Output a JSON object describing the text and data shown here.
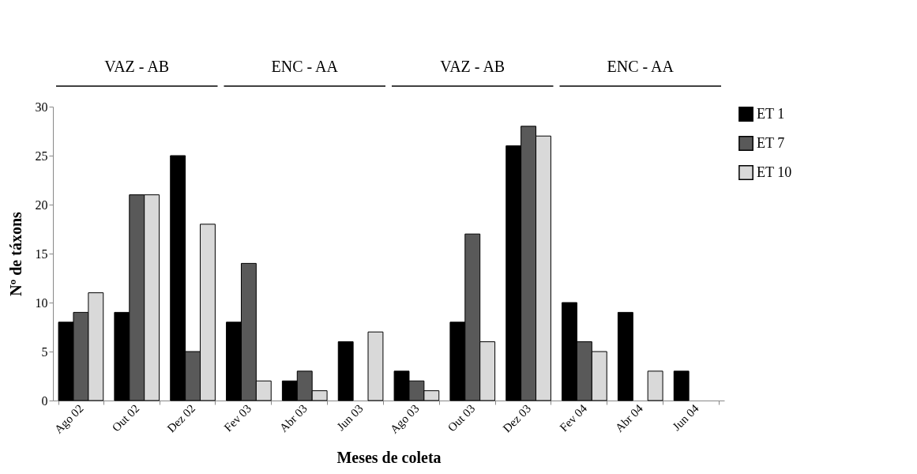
{
  "chart_data": {
    "type": "bar",
    "xlabel": "Meses de coleta",
    "ylabel": "Nº de táxons",
    "categories": [
      "Ago 02",
      "Out 02",
      "Dez 02",
      "Fev 03",
      "Abr 03",
      "Jun 03",
      "Ago 03",
      "Out 03",
      "Dez 03",
      "Fev 04",
      "Abr 04",
      "Jun 04"
    ],
    "series": [
      {
        "name": "ET 1",
        "color": "#000000",
        "values": [
          8,
          9,
          25,
          8,
          2,
          6,
          3,
          8,
          26,
          10,
          9,
          3
        ]
      },
      {
        "name": "ET 7",
        "color": "#595959",
        "values": [
          9,
          21,
          5,
          14,
          3,
          null,
          2,
          17,
          28,
          6,
          null,
          null
        ]
      },
      {
        "name": "ET 10",
        "color": "#d9d9d9",
        "values": [
          11,
          21,
          18,
          2,
          1,
          7,
          1,
          6,
          27,
          5,
          3,
          null
        ]
      }
    ],
    "ylim": [
      0,
      30
    ],
    "yticks": [
      0,
      5,
      10,
      15,
      20,
      25,
      30
    ],
    "grid": false,
    "legend": "right",
    "annotations": [
      "VAZ - AB",
      "ENC - AA",
      "VAZ - AB",
      "ENC - AA"
    ]
  }
}
